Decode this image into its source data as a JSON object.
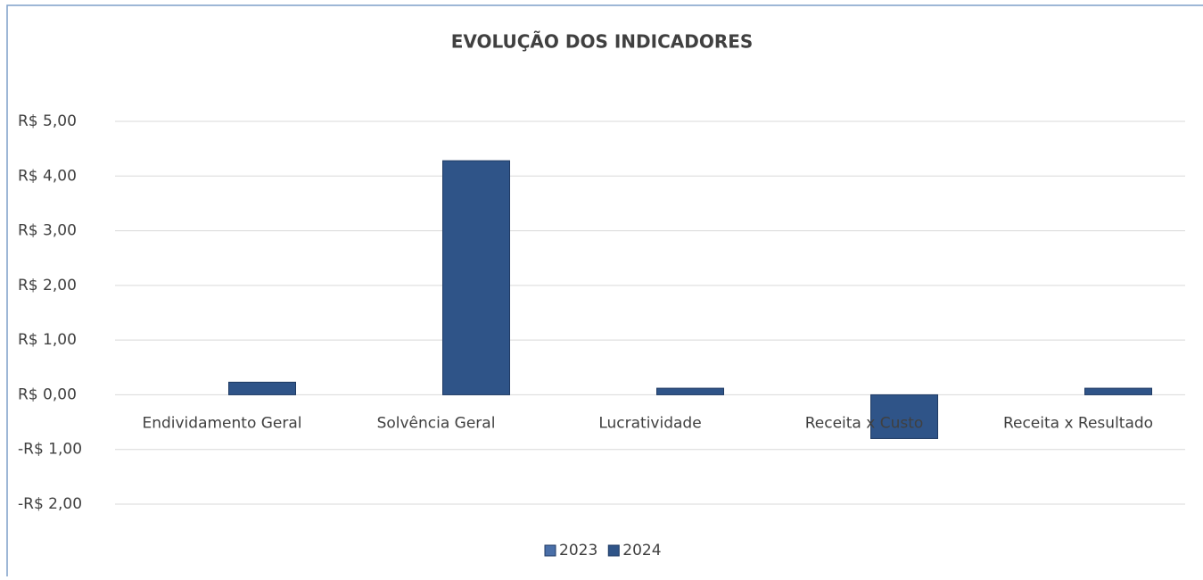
{
  "chart_data": {
    "type": "bar",
    "title": "EVOLUÇÃO DOS INDICADORES",
    "categories": [
      "Endividamento Geral",
      "Solvência Geral",
      "Lucratividade",
      "Receita x Custo",
      "Receita x Resultado"
    ],
    "series": [
      {
        "name": "2023",
        "color": "#4a6fa8",
        "values": [
          0,
          0,
          0,
          0,
          0
        ]
      },
      {
        "name": "2024",
        "color": "#2f5488",
        "values": [
          0.23,
          4.28,
          0.12,
          -0.8,
          0.12
        ]
      }
    ],
    "ylim": [
      -2,
      5
    ],
    "yticks": [
      {
        "value": -2,
        "label": "-R$ 2,00"
      },
      {
        "value": -1,
        "label": "-R$ 1,00"
      },
      {
        "value": 0,
        "label": "R$ 0,00"
      },
      {
        "value": 1,
        "label": "R$ 1,00"
      },
      {
        "value": 2,
        "label": "R$ 2,00"
      },
      {
        "value": 3,
        "label": "R$ 3,00"
      },
      {
        "value": 4,
        "label": "R$ 4,00"
      },
      {
        "value": 5,
        "label": "R$ 5,00"
      }
    ],
    "grid": true,
    "legend": "bottom"
  }
}
